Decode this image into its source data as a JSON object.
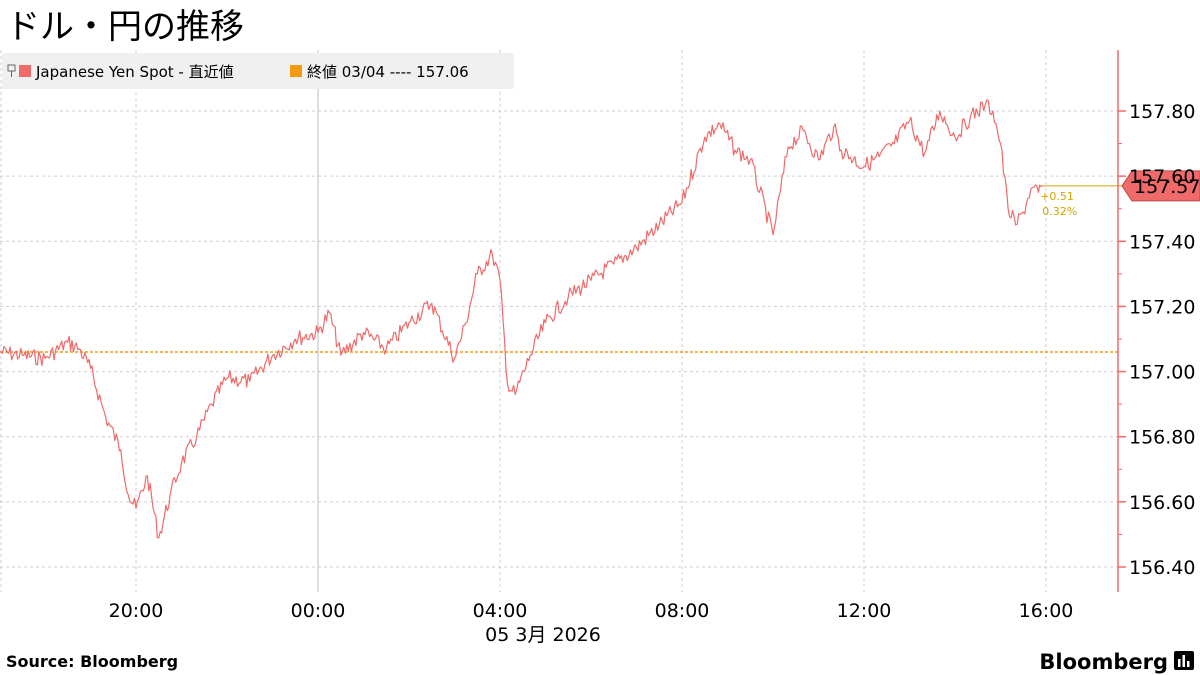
{
  "title": "ドル・円の推移",
  "legend": {
    "series_label": "Japanese Yen Spot - 直近値",
    "ref_label": "終値 03/04 ---- 157.06",
    "series_color": "#f06a6a",
    "ref_color": "#f39c12"
  },
  "last_value": {
    "label": "157.57",
    "change": "+0.51",
    "change_pct": "0.32%"
  },
  "x_axis": {
    "ticks": [
      "20:00",
      "00:00",
      "04:00",
      "08:00",
      "12:00",
      "16:00"
    ],
    "date_label": "05 3月 2026"
  },
  "y_axis": {
    "ticks": [
      "157.80",
      "157.60",
      "157.40",
      "157.20",
      "157.00",
      "156.80",
      "156.60",
      "156.40"
    ]
  },
  "source": "Source:  Bloomberg",
  "brand": "Bloomberg",
  "chart_data": {
    "type": "line",
    "title": "ドル・円の推移",
    "xlabel": "",
    "ylabel": "",
    "x": [
      "2026-03-04 17:00",
      "2026-03-04 17:30",
      "2026-03-04 18:00",
      "2026-03-04 18:30",
      "2026-03-04 18:45",
      "2026-03-04 19:00",
      "2026-03-04 19:20",
      "2026-03-04 19:40",
      "2026-03-04 19:50",
      "2026-03-04 20:00",
      "2026-03-04 20:15",
      "2026-03-04 20:30",
      "2026-03-04 20:45",
      "2026-03-04 21:00",
      "2026-03-04 21:20",
      "2026-03-04 21:40",
      "2026-03-04 22:00",
      "2026-03-04 22:30",
      "2026-03-04 23:00",
      "2026-03-04 23:30",
      "2026-03-05 00:00",
      "2026-03-05 00:15",
      "2026-03-05 00:30",
      "2026-03-05 01:00",
      "2026-03-05 01:30",
      "2026-03-05 02:00",
      "2026-03-05 02:30",
      "2026-03-05 03:00",
      "2026-03-05 03:15",
      "2026-03-05 03:30",
      "2026-03-05 03:50",
      "2026-03-05 04:00",
      "2026-03-05 04:10",
      "2026-03-05 04:20",
      "2026-03-05 04:40",
      "2026-03-05 05:00",
      "2026-03-05 05:30",
      "2026-03-05 06:00",
      "2026-03-05 06:30",
      "2026-03-05 07:00",
      "2026-03-05 07:30",
      "2026-03-05 08:00",
      "2026-03-05 08:30",
      "2026-03-05 08:50",
      "2026-03-05 09:10",
      "2026-03-05 09:30",
      "2026-03-05 10:00",
      "2026-03-05 10:20",
      "2026-03-05 10:40",
      "2026-03-05 11:00",
      "2026-03-05 11:20",
      "2026-03-05 11:30",
      "2026-03-05 12:00",
      "2026-03-05 12:20",
      "2026-03-05 12:40",
      "2026-03-05 13:00",
      "2026-03-05 13:20",
      "2026-03-05 13:40",
      "2026-03-05 14:00",
      "2026-03-05 14:20",
      "2026-03-05 14:40",
      "2026-03-05 14:50",
      "2026-03-05 15:00",
      "2026-03-05 15:10",
      "2026-03-05 15:20",
      "2026-03-05 15:30",
      "2026-03-05 15:40",
      "2026-03-05 15:50",
      "2026-03-05 15:55"
    ],
    "series": [
      {
        "name": "Japanese Yen Spot",
        "values": [
          157.06,
          157.05,
          157.04,
          157.09,
          157.07,
          157.01,
          156.86,
          156.76,
          156.62,
          156.58,
          156.68,
          156.49,
          156.62,
          156.72,
          156.8,
          156.9,
          156.98,
          156.97,
          157.05,
          157.1,
          157.12,
          157.18,
          157.05,
          157.12,
          157.07,
          157.15,
          157.21,
          157.04,
          157.15,
          157.3,
          157.36,
          157.28,
          156.96,
          156.93,
          157.05,
          157.15,
          157.23,
          157.28,
          157.33,
          157.38,
          157.45,
          157.52,
          157.72,
          157.76,
          157.68,
          157.65,
          157.42,
          157.69,
          157.74,
          157.65,
          157.75,
          157.68,
          157.63,
          157.66,
          157.7,
          157.77,
          157.67,
          157.8,
          157.72,
          157.78,
          157.82,
          157.8,
          157.7,
          157.5,
          157.45,
          157.49,
          157.56,
          157.55,
          157.57
        ]
      }
    ],
    "reference_line": {
      "label": "終値 03/04",
      "value": 157.06
    },
    "ylim": [
      156.35,
      157.95
    ],
    "y_ticks": [
      156.4,
      156.6,
      156.8,
      157.0,
      157.2,
      157.4,
      157.6,
      157.8
    ],
    "x_ticks": [
      "20:00",
      "00:00",
      "04:00",
      "08:00",
      "12:00",
      "16:00"
    ],
    "grid": true,
    "legend_position": "top-left"
  }
}
